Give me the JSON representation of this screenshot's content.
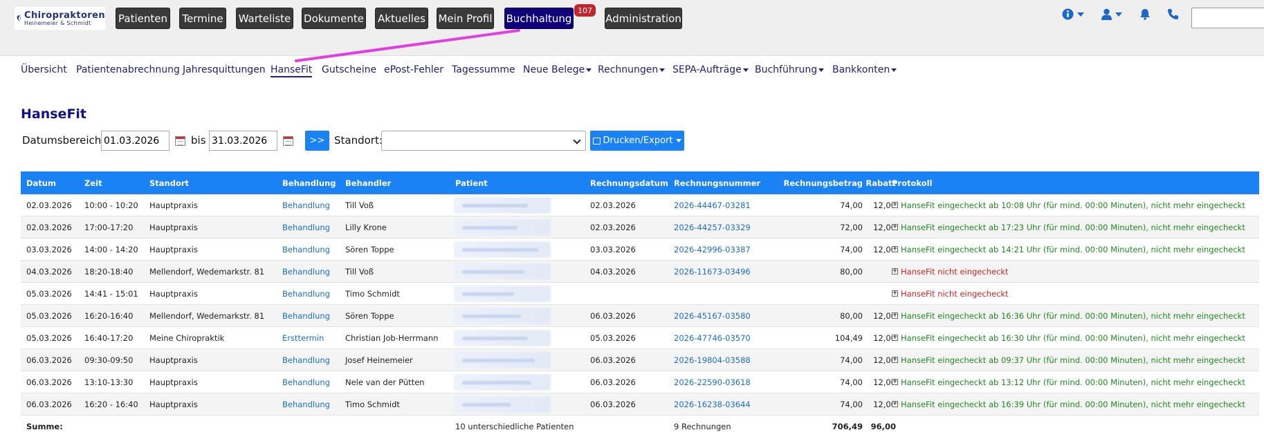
{
  "app": {
    "logo_title": "Chiropraktoren",
    "logo_sub": "Heinemeier & Schmidt"
  },
  "nav": {
    "patienten": "Patienten",
    "termine": "Termine",
    "warteliste": "Warteliste",
    "dokumente": "Dokumente",
    "aktuelles": "Aktuelles",
    "mein_profil": "Mein Profil",
    "buchhaltung": "Buchhaltung",
    "buchhaltung_badge": "107",
    "administration": "Administration"
  },
  "subnav": {
    "uebersicht": "Übersicht",
    "patientenabrechnung": "Patientenabrechnung",
    "jahresquittungen": "Jahresquittungen",
    "hansefit": "HanseFit",
    "gutscheine": "Gutscheine",
    "epost": "ePost-Fehler",
    "tagessumme": "Tagessumme",
    "neue_belege": "Neue Belege",
    "rechnungen": "Rechnungen",
    "sepa": "SEPA-Aufträge",
    "buchfuehrung": "Buchführung",
    "bankkonten": "Bankkonten"
  },
  "page": {
    "title": "HanseFit",
    "date_range_label": "Datumsbereich:",
    "date_from": "01.03.2026",
    "bis_label": "bis",
    "date_to": "31.03.2026",
    "go_label": ">>",
    "standort_label": "Standort:",
    "export_label": "Drucken/Export"
  },
  "table": {
    "headers": {
      "datum": "Datum",
      "zeit": "Zeit",
      "standort": "Standort",
      "behandlung": "Behandlung",
      "behandler": "Behandler",
      "patient": "Patient",
      "rechnungsdatum": "Rechnungsdatum",
      "rechnungsnummer": "Rechnungsnummer",
      "rechnungsbetrag": "Rechnungsbetrag",
      "rabatt": "Rabatt",
      "protokoll": "Protokoll"
    },
    "rows": [
      {
        "datum": "02.03.2026",
        "zeit": "10:00 - 10:20",
        "standort": "Hauptpraxis",
        "behandlung": "Behandlung",
        "behandler": "Till Voß",
        "rdatum": "02.03.2026",
        "rnr": "2026-44467-03281",
        "betrag": "74,00",
        "rabatt": "12,00",
        "protokoll": "HanseFit eingecheckt ab 10:08 Uhr (für mind. 00:00 Minuten), nicht mehr eingecheckt",
        "status": "ok"
      },
      {
        "datum": "02.03.2026",
        "zeit": "17:00-17:20",
        "standort": "Hauptpraxis",
        "behandlung": "Behandlung",
        "behandler": "Lilly Krone",
        "rdatum": "02.03.2026",
        "rnr": "2026-44257-03329",
        "betrag": "72,00",
        "rabatt": "12,00",
        "protokoll": "HanseFit eingecheckt ab 17:23 Uhr (für mind. 00:00 Minuten), nicht mehr eingecheckt",
        "status": "ok"
      },
      {
        "datum": "03.03.2026",
        "zeit": "14:00 - 14:20",
        "standort": "Hauptpraxis",
        "behandlung": "Behandlung",
        "behandler": "Sören Toppe",
        "rdatum": "03.03.2026",
        "rnr": "2026-42996-03387",
        "betrag": "74,00",
        "rabatt": "12,00",
        "protokoll": "HanseFit eingecheckt ab 14:21 Uhr (für mind. 00:00 Minuten), nicht mehr eingecheckt",
        "status": "ok"
      },
      {
        "datum": "04.03.2026",
        "zeit": "18:20-18:40",
        "standort": "Mellendorf, Wedemarkstr. 81",
        "behandlung": "Behandlung",
        "behandler": "Till Voß",
        "rdatum": "04.03.2026",
        "rnr": "2026-11673-03496",
        "betrag": "80,00",
        "rabatt": "",
        "protokoll": "HanseFit nicht eingecheckt",
        "status": "bad"
      },
      {
        "datum": "05.03.2026",
        "zeit": "14:41 - 15:01",
        "standort": "Hauptpraxis",
        "behandlung": "Behandlung",
        "behandler": "Timo Schmidt",
        "rdatum": "",
        "rnr": "",
        "betrag": "",
        "rabatt": "",
        "protokoll": "HanseFit nicht eingecheckt",
        "status": "bad"
      },
      {
        "datum": "05.03.2026",
        "zeit": "16:20-16:40",
        "standort": "Mellendorf, Wedemarkstr. 81",
        "behandlung": "Behandlung",
        "behandler": "Sören Toppe",
        "rdatum": "06.03.2026",
        "rnr": "2026-45167-03580",
        "betrag": "80,00",
        "rabatt": "12,00",
        "protokoll": "HanseFit eingecheckt ab 16:36 Uhr (für mind. 00:00 Minuten), nicht mehr eingecheckt",
        "status": "ok"
      },
      {
        "datum": "05.03.2026",
        "zeit": "16:40-17:20",
        "standort": "Meine Chiropraktik",
        "behandlung": "Ersttermin",
        "behandler": "Christian Job-Herrmann",
        "rdatum": "05.03.2026",
        "rnr": "2026-47746-03570",
        "betrag": "104,49",
        "rabatt": "12,00",
        "protokoll": "HanseFit eingecheckt ab 16:30 Uhr (für mind. 00:00 Minuten), nicht mehr eingecheckt",
        "status": "ok"
      },
      {
        "datum": "06.03.2026",
        "zeit": "09:30-09:50",
        "standort": "Hauptpraxis",
        "behandlung": "Behandlung",
        "behandler": "Josef Heinemeier",
        "rdatum": "06.03.2026",
        "rnr": "2026-19804-03588",
        "betrag": "74,00",
        "rabatt": "12,00",
        "protokoll": "HanseFit eingecheckt ab 09:37 Uhr (für mind. 00:00 Minuten), nicht mehr eingecheckt",
        "status": "ok"
      },
      {
        "datum": "06.03.2026",
        "zeit": "13:10-13:30",
        "standort": "Hauptpraxis",
        "behandlung": "Behandlung",
        "behandler": "Nele van der Pütten",
        "rdatum": "06.03.2026",
        "rnr": "2026-22590-03618",
        "betrag": "74,00",
        "rabatt": "12,00",
        "protokoll": "HanseFit eingecheckt ab 13:12 Uhr (für mind. 00:00 Minuten), nicht mehr eingecheckt",
        "status": "ok"
      },
      {
        "datum": "06.03.2026",
        "zeit": "16:20 - 16:40",
        "standort": "Hauptpraxis",
        "behandlung": "Behandlung",
        "behandler": "Timo Schmidt",
        "rdatum": "06.03.2026",
        "rnr": "2026-16238-03644",
        "betrag": "74,00",
        "rabatt": "12,00",
        "protokoll": "HanseFit eingecheckt ab 16:39 Uhr (für mind. 00:00 Minuten), nicht mehr eingecheckt",
        "status": "ok"
      }
    ],
    "summary": {
      "label": "Summe:",
      "patients": "10 unterschiedliche Patienten",
      "invoices": "9 Rechnungen",
      "betrag": "706,49",
      "rabatt": "96,00"
    }
  },
  "colors": {
    "accent": "#1a82f4",
    "active_nav": "#10007a",
    "ok": "#1e8a1e",
    "bad": "#d62020",
    "annotation": "#e040e0"
  }
}
